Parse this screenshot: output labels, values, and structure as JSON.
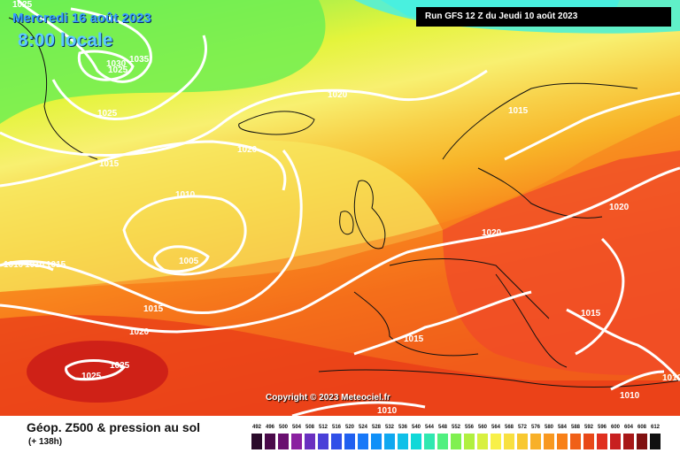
{
  "header": {
    "date": "Mercredi 16 août 2023",
    "time": "8:00 locale",
    "run": "Run GFS 12 Z du Jeudi 10 août 2023"
  },
  "copyright": "Copyright © 2023 Meteociel.fr",
  "footer": {
    "title": "Géop. Z500 & pression au sol",
    "subtitle": "(+ 138h)"
  },
  "isobars": [
    {
      "label": "1025"
    },
    {
      "label": "1035"
    },
    {
      "label": "1030"
    },
    {
      "label": "1025"
    },
    {
      "label": "1025"
    },
    {
      "label": "1015"
    },
    {
      "label": "1020"
    },
    {
      "label": "1020"
    },
    {
      "label": "1015"
    },
    {
      "label": "1010"
    },
    {
      "label": "1005"
    },
    {
      "label": "1010"
    },
    {
      "label": "1010"
    },
    {
      "label": "1015"
    },
    {
      "label": "1015"
    },
    {
      "label": "1020"
    },
    {
      "label": "1025"
    },
    {
      "label": "1025"
    },
    {
      "label": "1020"
    },
    {
      "label": "1020"
    },
    {
      "label": "1015"
    },
    {
      "label": "1015"
    },
    {
      "label": "1010"
    },
    {
      "label": "1010"
    },
    {
      "label": "1010"
    }
  ],
  "scale": {
    "labels": [
      "492",
      "496",
      "500",
      "504",
      "508",
      "512",
      "516",
      "520",
      "524",
      "528",
      "532",
      "536",
      "540",
      "544",
      "548",
      "552",
      "556",
      "560",
      "564",
      "568",
      "572",
      "576",
      "580",
      "584",
      "588",
      "592",
      "596",
      "600",
      "604",
      "608",
      "612"
    ],
    "colors": [
      "#2a0a2a",
      "#4a0a4a",
      "#6a1070",
      "#8a20a0",
      "#6a30c0",
      "#4a40d8",
      "#3050e8",
      "#2060f0",
      "#1878f8",
      "#1090f8",
      "#10a8f0",
      "#10c0e8",
      "#10d8d8",
      "#30e8b0",
      "#50f080",
      "#80f050",
      "#b0f040",
      "#d8f040",
      "#f8f048",
      "#f8e040",
      "#f8c830",
      "#f8b028",
      "#f89820",
      "#f88018",
      "#f06018",
      "#e84818",
      "#e03020",
      "#c82020",
      "#a81818",
      "#801010",
      "#101010"
    ]
  }
}
